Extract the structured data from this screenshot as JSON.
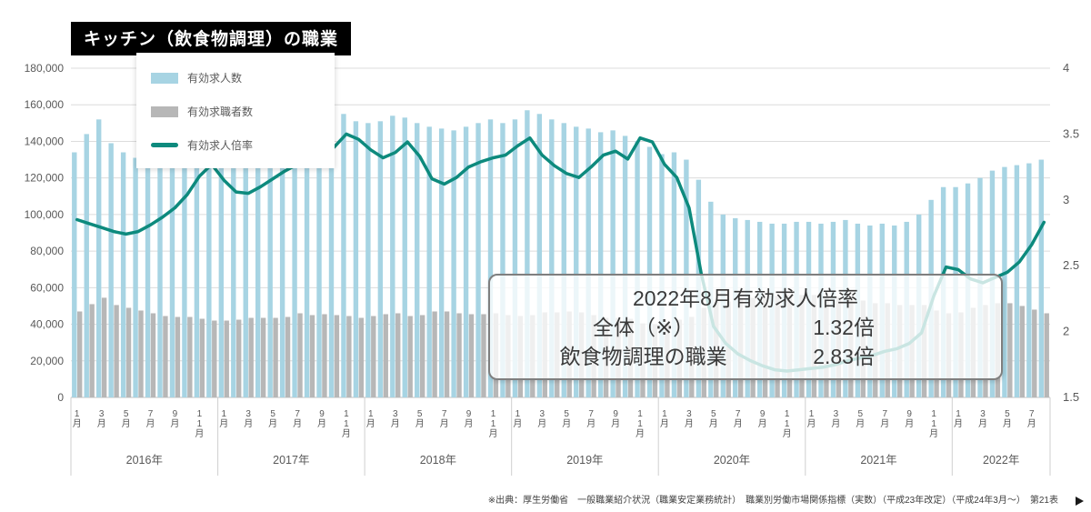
{
  "title": "キッチン（飲食物調理）の職業",
  "legend": {
    "items": [
      {
        "label": "有効求人数"
      },
      {
        "label": "有効求職者数"
      },
      {
        "label": "有効求人倍率"
      }
    ]
  },
  "annotation": {
    "title": "2022年8月有効求人倍率",
    "rows": [
      {
        "label": "全体（※）",
        "value": "1.32倍"
      },
      {
        "label": "飲食物調理の職業",
        "value": "2.83倍"
      }
    ]
  },
  "footer": "※出典：厚生労働省　一般職業紹介状況（職業安定業務統計）　職業別労働市場関係指標（実数）（平成23年改定）（平成24年3月～）　第21表",
  "colors": {
    "openings_bar": "#a7d4e3",
    "seekers_bar": "#b7b7b7",
    "ratio_line": "#0d8a7d",
    "grid": "#dcdcdc",
    "axis_text": "#595959"
  },
  "chart_data": {
    "type": "bar",
    "combo": "grouped monthly bars on left axis + ratio line on right axis",
    "title": "キッチン（飲食物調理）の職業",
    "legend_position": "top-left",
    "grid": true,
    "x": {
      "start": "2016-01",
      "end": "2022-08",
      "years": [
        {
          "label": "2016年",
          "months": 12
        },
        {
          "label": "2017年",
          "months": 12
        },
        {
          "label": "2018年",
          "months": 12
        },
        {
          "label": "2019年",
          "months": 12
        },
        {
          "label": "2020年",
          "months": 12
        },
        {
          "label": "2021年",
          "months": 12
        },
        {
          "label": "2022年",
          "months": 8
        }
      ],
      "month_tick_labels": [
        "1月",
        "3月",
        "5月",
        "7月",
        "9月",
        "11月"
      ]
    },
    "left_axis": {
      "min": 0,
      "max": 180000,
      "step": 20000,
      "tick_labels": [
        "0",
        "20,000",
        "40,000",
        "60,000",
        "80,000",
        "100,000",
        "120,000",
        "140,000",
        "160,000",
        "180,000"
      ]
    },
    "right_axis": {
      "min": 1.5,
      "max": 4,
      "step": 0.5,
      "tick_labels": [
        "1.5",
        "2",
        "2.5",
        "3",
        "3.5",
        "4"
      ]
    },
    "series": [
      {
        "name": "有効求人数",
        "type": "bar",
        "axis": "left",
        "color": "#a7d4e3",
        "values": [
          134000,
          144000,
          152000,
          139000,
          134000,
          131000,
          129000,
          128000,
          130000,
          133000,
          136000,
          138000,
          132000,
          130000,
          133000,
          135000,
          137000,
          141000,
          150000,
          148000,
          152000,
          153000,
          155000,
          151000,
          150000,
          151000,
          154000,
          153000,
          150000,
          148000,
          147000,
          146000,
          148000,
          150000,
          152000,
          150000,
          152000,
          157000,
          155000,
          152000,
          150000,
          148000,
          147000,
          145000,
          146000,
          143000,
          140000,
          137000,
          133000,
          134000,
          130000,
          119000,
          107000,
          100000,
          98000,
          97000,
          96000,
          95000,
          95000,
          96000,
          96000,
          95000,
          96000,
          97000,
          95000,
          94000,
          95000,
          94000,
          96000,
          100000,
          108000,
          115000,
          115000,
          117000,
          120000,
          124000,
          126000,
          127000,
          128000,
          130000
        ]
      },
      {
        "name": "有効求職者数",
        "type": "bar",
        "axis": "left",
        "color": "#b7b7b7",
        "values": [
          47000,
          51000,
          54500,
          50500,
          49000,
          47500,
          46000,
          44500,
          44000,
          44000,
          43000,
          42000,
          42000,
          42500,
          43500,
          43500,
          43500,
          44000,
          46000,
          45000,
          45500,
          45000,
          44500,
          43500,
          44500,
          45500,
          46000,
          44500,
          45000,
          47000,
          47000,
          46000,
          45500,
          45500,
          46000,
          45000,
          44500,
          45000,
          46500,
          46500,
          47000,
          46500,
          45000,
          43500,
          43500,
          43000,
          40500,
          40000,
          40500,
          42500,
          44000,
          49000,
          52500,
          52500,
          53500,
          54500,
          55000,
          55500,
          56000,
          56000,
          56000,
          55000,
          55000,
          54500,
          53000,
          51500,
          51500,
          50500,
          50500,
          50500,
          47500,
          46000,
          46500,
          49000,
          50500,
          51500,
          51500,
          50000,
          48000,
          46000
        ]
      },
      {
        "name": "有効求人倍率",
        "type": "line",
        "axis": "right",
        "color": "#0d8a7d",
        "values": [
          2.85,
          2.82,
          2.79,
          2.76,
          2.74,
          2.76,
          2.81,
          2.87,
          2.94,
          3.04,
          3.18,
          3.27,
          3.15,
          3.06,
          3.05,
          3.1,
          3.16,
          3.22,
          3.27,
          3.3,
          3.34,
          3.4,
          3.5,
          3.46,
          3.38,
          3.32,
          3.36,
          3.44,
          3.33,
          3.16,
          3.12,
          3.17,
          3.25,
          3.29,
          3.32,
          3.34,
          3.41,
          3.47,
          3.34,
          3.26,
          3.2,
          3.17,
          3.25,
          3.34,
          3.37,
          3.31,
          3.47,
          3.44,
          3.27,
          3.17,
          2.94,
          2.44,
          2.04,
          1.91,
          1.83,
          1.78,
          1.74,
          1.71,
          1.7,
          1.71,
          1.72,
          1.73,
          1.75,
          1.78,
          1.8,
          1.82,
          1.85,
          1.87,
          1.91,
          1.99,
          2.27,
          2.49,
          2.47,
          2.4,
          2.37,
          2.41,
          2.45,
          2.53,
          2.66,
          2.83
        ]
      }
    ],
    "annotations": [
      {
        "text": "2022年8月有効求人倍率"
      },
      {
        "text": "全体（※）　1.32倍"
      },
      {
        "text": "飲食物調理の職業　2.83倍"
      }
    ]
  }
}
